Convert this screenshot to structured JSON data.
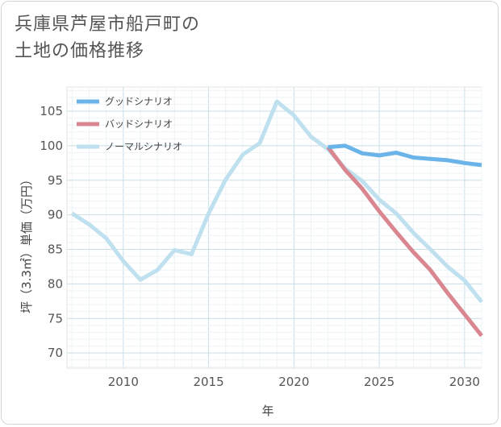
{
  "header": {
    "title_line1": "兵庫県芦屋市船戸町の",
    "title_line2": "土地の価格推移"
  },
  "chart_data": {
    "type": "line",
    "title": "兵庫県芦屋市船戸町の土地の価格推移",
    "xlabel": "年",
    "ylabel": "坪（3.3㎡）単価（万円）",
    "xlim": [
      2006.7,
      2031
    ],
    "ylim": [
      67.8,
      108.5
    ],
    "xticks": [
      2010,
      2015,
      2020,
      2025,
      2030
    ],
    "yticks": [
      70,
      75,
      80,
      85,
      90,
      95,
      100,
      105
    ],
    "grid": true,
    "legend_position": "top-left",
    "series": [
      {
        "name": "グッドシナリオ",
        "color": "#6ab4ea",
        "x": [
          2022,
          2023,
          2024,
          2025,
          2026,
          2027,
          2028,
          2029,
          2030,
          2031
        ],
        "y": [
          99.8,
          100.0,
          98.9,
          98.6,
          99.0,
          98.3,
          98.1,
          97.9,
          97.5,
          97.2
        ]
      },
      {
        "name": "バッドシナリオ",
        "color": "#d98690",
        "x": [
          2022,
          2023,
          2024,
          2025,
          2026,
          2027,
          2028,
          2029,
          2030,
          2031
        ],
        "y": [
          99.8,
          96.5,
          93.8,
          90.5,
          87.5,
          84.6,
          82.0,
          78.7,
          75.6,
          72.5
        ]
      },
      {
        "name": "ノーマルシナリオ",
        "color": "#bfe0ee",
        "x": [
          2007,
          2008,
          2009,
          2010,
          2011,
          2012,
          2013,
          2014,
          2015,
          2016,
          2017,
          2018,
          2019,
          2020,
          2021,
          2022,
          2023,
          2024,
          2025,
          2026,
          2027,
          2028,
          2029,
          2030,
          2031
        ],
        "y": [
          90.2,
          88.6,
          86.6,
          83.3,
          80.6,
          82.0,
          84.9,
          84.3,
          90.2,
          95.1,
          98.7,
          100.4,
          106.4,
          104.4,
          101.3,
          99.5,
          96.7,
          94.9,
          92.2,
          90.2,
          87.4,
          85.0,
          82.5,
          80.5,
          77.4
        ]
      }
    ]
  }
}
